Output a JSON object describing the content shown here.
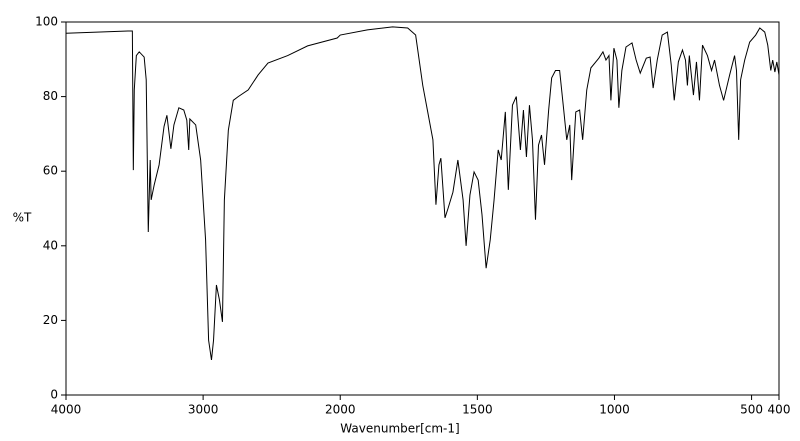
{
  "chart_data": {
    "type": "line",
    "xlabel": "Wavenumber[cm-1]",
    "ylabel": "%T",
    "color": "#000000",
    "x_scale": {
      "break": 2000,
      "ratio": 2
    },
    "xlim": [
      4000,
      400
    ],
    "xticks": [
      4000,
      3000,
      2000,
      1500,
      1000,
      500,
      400
    ],
    "ylim": [
      0,
      100
    ],
    "yticks": [
      0,
      20,
      40,
      60,
      80,
      100
    ],
    "x": [
      4000,
      3538,
      3516,
      3509,
      3502,
      3487,
      3466,
      3430,
      3415,
      3400,
      3386,
      3379,
      3357,
      3321,
      3285,
      3264,
      3235,
      3213,
      3177,
      3141,
      3119,
      3105,
      3097,
      3054,
      3018,
      2982,
      2960,
      2939,
      2924,
      2903,
      2881,
      2859,
      2845,
      2816,
      2780,
      2744,
      2671,
      2599,
      2527,
      2383,
      2238,
      2022,
      2000,
      1901,
      1809,
      1754,
      1725,
      1699,
      1681,
      1662,
      1651,
      1640,
      1633,
      1618,
      1607,
      1589,
      1571,
      1552,
      1541,
      1527,
      1512,
      1497,
      1483,
      1468,
      1453,
      1439,
      1424,
      1413,
      1398,
      1387,
      1372,
      1358,
      1343,
      1332,
      1321,
      1310,
      1299,
      1288,
      1277,
      1266,
      1255,
      1240,
      1229,
      1215,
      1200,
      1185,
      1174,
      1163,
      1156,
      1141,
      1127,
      1116,
      1101,
      1086,
      1057,
      1042,
      1031,
      1020,
      1013,
      1002,
      991,
      984,
      973,
      958,
      936,
      921,
      906,
      884,
      870,
      859,
      844,
      826,
      807,
      793,
      782,
      767,
      752,
      741,
      734,
      727,
      712,
      701,
      690,
      679,
      661,
      646,
      635,
      617,
      602,
      580,
      562,
      555,
      547,
      540,
      525,
      507,
      485,
      470,
      452,
      441,
      430,
      423,
      415,
      408,
      400
    ],
    "values": [
      97,
      97.6,
      97.6,
      60.3,
      81.8,
      91,
      92,
      90.6,
      84.5,
      43.7,
      63,
      52.3,
      56.3,
      61.7,
      72,
      75,
      66,
      72.4,
      77,
      76.4,
      73.7,
      65.7,
      74,
      72.4,
      63,
      41.6,
      14.7,
      9.4,
      14.7,
      29.5,
      25.5,
      19.6,
      52.3,
      71,
      79,
      80,
      81.8,
      85.8,
      89,
      91,
      93.6,
      95.7,
      96.5,
      97.9,
      98.7,
      98.4,
      96.5,
      83,
      75.9,
      68.4,
      51,
      61.7,
      63.5,
      47.5,
      50,
      54.4,
      63,
      52.3,
      40,
      53.6,
      59.8,
      57.6,
      48.3,
      34,
      41.6,
      52.3,
      65.7,
      63,
      75.9,
      55,
      77.7,
      80,
      65.7,
      76.4,
      63.8,
      77.7,
      68.4,
      47,
      67,
      69.7,
      61.7,
      76.4,
      85,
      87,
      87,
      76.4,
      68.4,
      72.4,
      57.6,
      75.9,
      76.4,
      68.4,
      81.8,
      87.7,
      90.3,
      92,
      89.8,
      91,
      79,
      93,
      89.8,
      77,
      87,
      93.3,
      94.4,
      89.8,
      86.3,
      90.3,
      90.6,
      82.3,
      89.8,
      96.5,
      97.3,
      88.5,
      79,
      89.3,
      92.5,
      89.8,
      83,
      91,
      80.4,
      89.3,
      79,
      93.8,
      91,
      87,
      89.8,
      83,
      79,
      85.8,
      91,
      87,
      68.4,
      84.5,
      89.8,
      94.6,
      96.5,
      98.4,
      97.3,
      93.8,
      87,
      89.8,
      86.6,
      89.3,
      85.8
    ]
  }
}
